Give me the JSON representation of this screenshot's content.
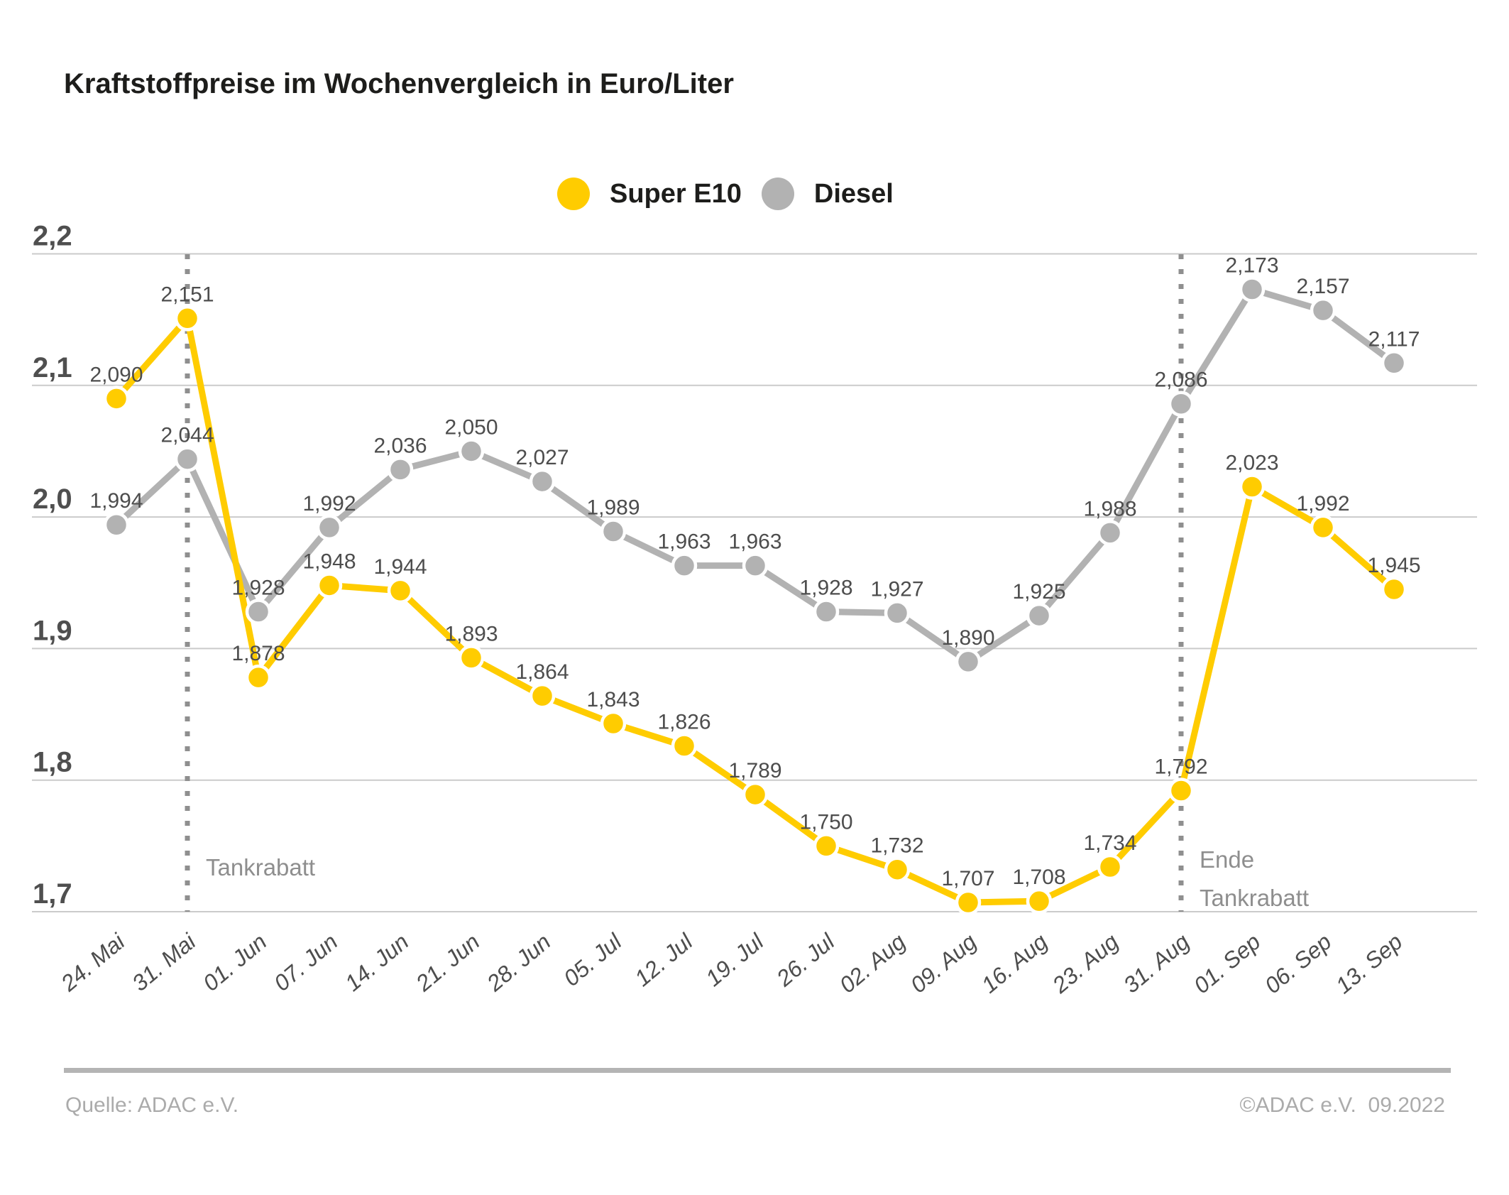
{
  "page": {
    "title": "Kraftstoffpreise im Wochenvergleich in Euro/Liter",
    "footer": {
      "source": "Quelle: ADAC e.V.",
      "copyright": "©ADAC e.V.  09.2022"
    }
  },
  "legend": [
    {
      "label": "Super E10",
      "color": "#FFCC00"
    },
    {
      "label": "Diesel",
      "color": "#B2B2B2"
    }
  ],
  "chart_data": {
    "type": "line",
    "title": "Kraftstoffpreise im Wochenvergleich in Euro/Liter",
    "unit": "Euro/Liter",
    "grid": true,
    "legend_position": "top-center",
    "categories": [
      "24. Mai",
      "31. Mai",
      "01. Jun",
      "07. Jun",
      "14. Jun",
      "21. Jun",
      "28. Jun",
      "05. Jul",
      "12. Jul",
      "19. Jul",
      "26. Jul",
      "02. Aug",
      "09. Aug",
      "16. Aug",
      "23. Aug",
      "31. Aug",
      "01. Sep",
      "06. Sep",
      "13. Sep"
    ],
    "series": [
      {
        "name": "Diesel",
        "color": "#B2B2B2",
        "values": [
          1.994,
          2.044,
          1.928,
          1.992,
          2.036,
          2.05,
          2.027,
          1.989,
          1.963,
          1.963,
          1.928,
          1.927,
          1.89,
          1.925,
          1.988,
          2.086,
          2.173,
          2.157,
          2.117
        ],
        "labels": [
          "1,994",
          "2,044",
          "1,928",
          "1,992",
          "2,036",
          "2,050",
          "2,027",
          "1,989",
          "1,963",
          "1,963",
          "1,928",
          "1,927",
          "1,890",
          "1,925",
          "1,988",
          "2,086",
          "2,173",
          "2,157",
          "2,117"
        ]
      },
      {
        "name": "Super E10",
        "color": "#FFCC00",
        "values": [
          2.09,
          2.151,
          1.878,
          1.948,
          1.944,
          1.893,
          1.864,
          1.843,
          1.826,
          1.789,
          1.75,
          1.732,
          1.707,
          1.708,
          1.734,
          1.792,
          2.023,
          1.992,
          1.945
        ],
        "labels": [
          "2,090",
          "2,151",
          "1,878",
          "1,948",
          "1,944",
          "1,893",
          "1,864",
          "1,843",
          "1,826",
          "1,789",
          "1,750",
          "1,732",
          "1,707",
          "1,708",
          "1,734",
          "1,792",
          "2,023",
          "1,992",
          "1,945"
        ]
      }
    ],
    "y_axis": {
      "min": 1.7,
      "max": 2.2,
      "ticks": [
        {
          "value": 2.2,
          "label": "2,2"
        },
        {
          "value": 2.1,
          "label": "2,1"
        },
        {
          "value": 2.0,
          "label": "2,0"
        },
        {
          "value": 1.9,
          "label": "1,9"
        },
        {
          "value": 1.8,
          "label": "1,8"
        },
        {
          "value": 1.7,
          "label": "1,7"
        }
      ]
    },
    "event_lines": [
      {
        "category": "31. Mai"
      },
      {
        "category": "31. Aug"
      }
    ],
    "annotations": [
      {
        "lines": [
          "Tankrabatt"
        ],
        "at_category": "31. Mai"
      },
      {
        "lines": [
          "Ende",
          "Tankrabatt"
        ],
        "at_category": "31. Aug"
      }
    ]
  }
}
